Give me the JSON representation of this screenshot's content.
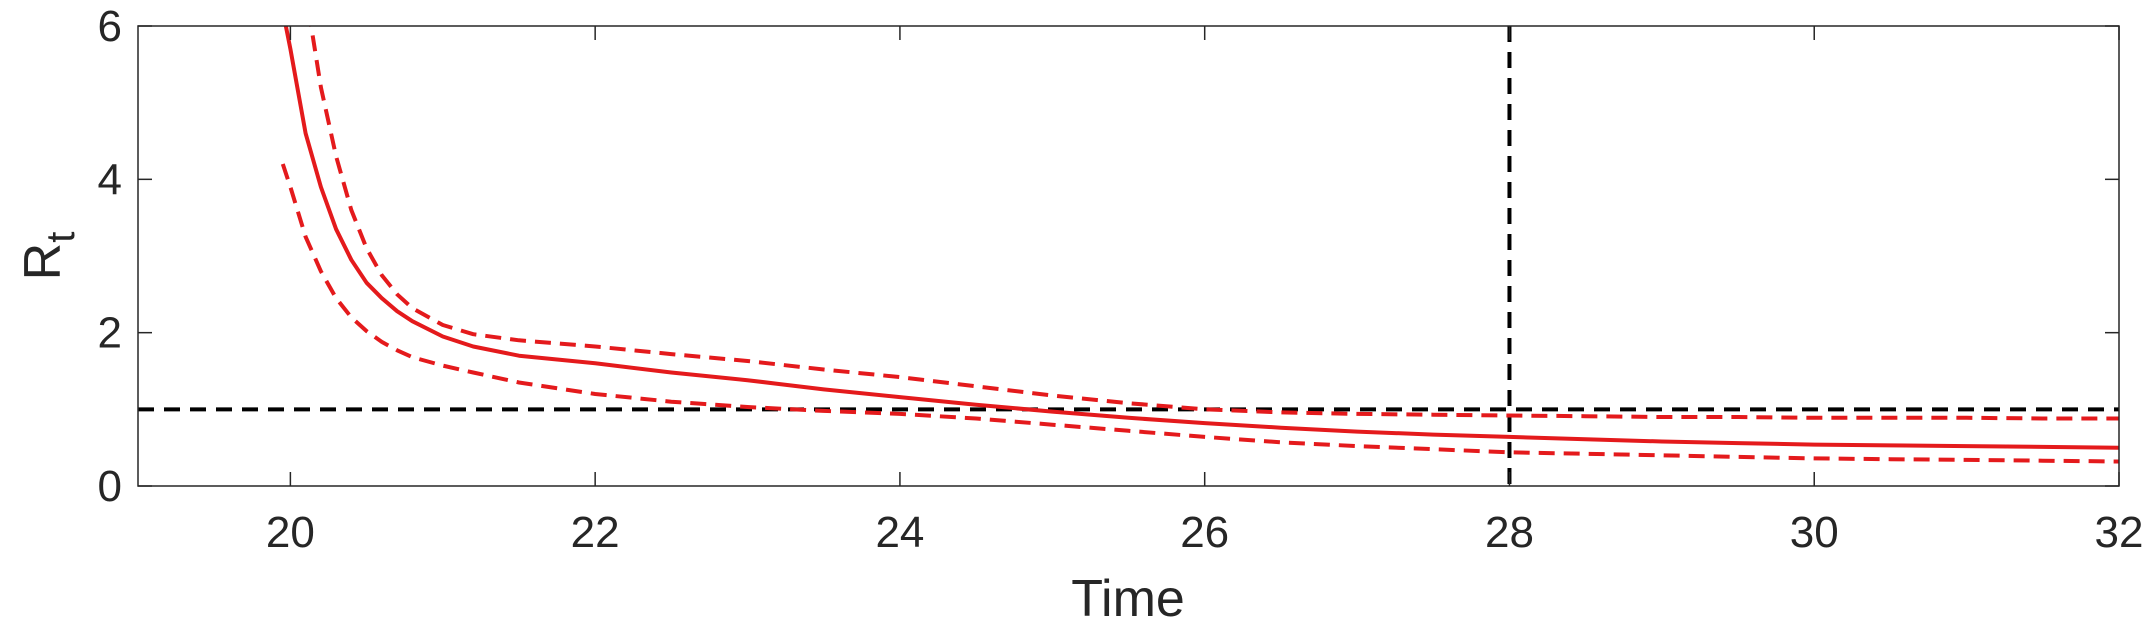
{
  "chart_data": {
    "type": "line",
    "title": "",
    "xlabel": "Time",
    "ylabel": "R",
    "ylabel_subscript": "t",
    "xlim": [
      19,
      32
    ],
    "ylim": [
      0,
      6
    ],
    "xticks": [
      20,
      22,
      24,
      26,
      28,
      30,
      32
    ],
    "yticks": [
      0,
      2,
      4,
      6
    ],
    "grid": false,
    "legend": "none",
    "series": [
      {
        "role": "estimate",
        "color": "#e41a1c",
        "style": "solid",
        "x": [
          19.95,
          20.0,
          20.1,
          20.2,
          20.3,
          20.4,
          20.5,
          20.6,
          20.7,
          20.8,
          21.0,
          21.2,
          21.5,
          22.0,
          22.5,
          23.0,
          23.5,
          24.0,
          24.5,
          25.0,
          25.5,
          26.0,
          26.5,
          27.0,
          27.5,
          28.0,
          28.5,
          29.0,
          29.5,
          30.0,
          30.5,
          31.0,
          31.5,
          32.0
        ],
        "y": [
          6.2,
          5.7,
          4.6,
          3.9,
          3.35,
          2.95,
          2.65,
          2.45,
          2.28,
          2.15,
          1.95,
          1.82,
          1.7,
          1.6,
          1.48,
          1.38,
          1.26,
          1.16,
          1.06,
          0.97,
          0.89,
          0.82,
          0.76,
          0.71,
          0.67,
          0.64,
          0.61,
          0.58,
          0.56,
          0.54,
          0.53,
          0.52,
          0.51,
          0.5
        ]
      },
      {
        "role": "upper bound",
        "color": "#e41a1c",
        "style": "dashed",
        "x": [
          20.12,
          20.2,
          20.3,
          20.4,
          20.5,
          20.6,
          20.7,
          20.8,
          21.0,
          21.2,
          21.5,
          22.0,
          22.5,
          23.0,
          23.5,
          24.0,
          24.5,
          25.0,
          25.5,
          26.0,
          26.5,
          27.0,
          27.5,
          28.0,
          28.5,
          29.0,
          29.5,
          30.0,
          30.5,
          31.0,
          31.5,
          32.0
        ],
        "y": [
          6.2,
          5.2,
          4.3,
          3.6,
          3.1,
          2.75,
          2.5,
          2.32,
          2.1,
          1.98,
          1.9,
          1.82,
          1.72,
          1.63,
          1.52,
          1.42,
          1.3,
          1.18,
          1.08,
          1.0,
          0.96,
          0.94,
          0.93,
          0.92,
          0.91,
          0.9,
          0.9,
          0.89,
          0.89,
          0.89,
          0.88,
          0.88
        ]
      },
      {
        "role": "lower bound",
        "color": "#e41a1c",
        "style": "dashed",
        "x": [
          19.95,
          20.0,
          20.1,
          20.2,
          20.3,
          20.4,
          20.5,
          20.6,
          20.7,
          20.8,
          21.0,
          21.2,
          21.5,
          22.0,
          22.5,
          23.0,
          23.5,
          24.0,
          24.5,
          25.0,
          25.5,
          26.0,
          26.5,
          27.0,
          27.5,
          28.0,
          28.5,
          29.0,
          29.5,
          30.0,
          30.5,
          31.0,
          31.5,
          32.0
        ],
        "y": [
          4.2,
          3.9,
          3.25,
          2.8,
          2.45,
          2.2,
          2.02,
          1.88,
          1.77,
          1.68,
          1.57,
          1.48,
          1.35,
          1.2,
          1.1,
          1.03,
          0.98,
          0.94,
          0.88,
          0.8,
          0.72,
          0.64,
          0.57,
          0.52,
          0.48,
          0.44,
          0.42,
          0.4,
          0.38,
          0.36,
          0.35,
          0.34,
          0.33,
          0.32
        ]
      }
    ],
    "reference_lines": [
      {
        "orientation": "horizontal",
        "value": 1,
        "color": "#000000",
        "style": "dashed"
      },
      {
        "orientation": "vertical",
        "value": 28,
        "color": "#000000",
        "style": "dashed"
      }
    ]
  }
}
